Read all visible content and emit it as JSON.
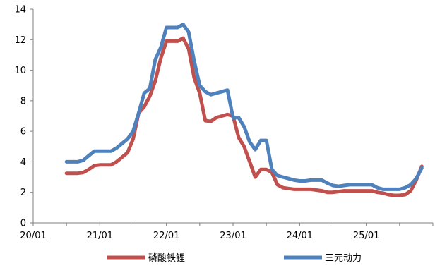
{
  "chart_data": {
    "type": "line",
    "title": "",
    "xlabel": "",
    "ylabel": "",
    "ylim": [
      0,
      14
    ],
    "yticks": [
      0,
      2,
      4,
      6,
      8,
      10,
      12,
      14
    ],
    "xlim": [
      "2020-01",
      "2026-01"
    ],
    "xticks": [
      {
        "x": "2020-01",
        "label": "20/01"
      },
      {
        "x": "2021-01",
        "label": "21/01"
      },
      {
        "x": "2022-01",
        "label": "22/01"
      },
      {
        "x": "2023-01",
        "label": "23/01"
      },
      {
        "x": "2024-01",
        "label": "24/01"
      },
      {
        "x": "2025-01",
        "label": "25/01"
      }
    ],
    "grid": false,
    "legend": "bottom",
    "series": [
      {
        "name": "磷酸铁锂",
        "color": "#C0504D",
        "points": [
          [
            "2020-07",
            3.25
          ],
          [
            "2020-08",
            3.25
          ],
          [
            "2020-09",
            3.25
          ],
          [
            "2020-10",
            3.3
          ],
          [
            "2020-11",
            3.5
          ],
          [
            "2020-12",
            3.75
          ],
          [
            "2021-01",
            3.8
          ],
          [
            "2021-02",
            3.8
          ],
          [
            "2021-03",
            3.8
          ],
          [
            "2021-04",
            4.0
          ],
          [
            "2021-05",
            4.3
          ],
          [
            "2021-06",
            4.6
          ],
          [
            "2021-07",
            5.5
          ],
          [
            "2021-08",
            7.2
          ],
          [
            "2021-09",
            7.6
          ],
          [
            "2021-10",
            8.3
          ],
          [
            "2021-11",
            9.3
          ],
          [
            "2021-12",
            10.8
          ],
          [
            "2022-01",
            11.9
          ],
          [
            "2022-02",
            11.9
          ],
          [
            "2022-03",
            11.9
          ],
          [
            "2022-04",
            12.1
          ],
          [
            "2022-05",
            11.4
          ],
          [
            "2022-06",
            9.5
          ],
          [
            "2022-07",
            8.5
          ],
          [
            "2022-08",
            6.7
          ],
          [
            "2022-09",
            6.65
          ],
          [
            "2022-10",
            6.9
          ],
          [
            "2022-11",
            7.0
          ],
          [
            "2022-12",
            7.1
          ],
          [
            "2023-01",
            7.0
          ],
          [
            "2023-02",
            5.6
          ],
          [
            "2023-03",
            5.0
          ],
          [
            "2023-04",
            4.0
          ],
          [
            "2023-05",
            3.0
          ],
          [
            "2023-06",
            3.5
          ],
          [
            "2023-07",
            3.5
          ],
          [
            "2023-08",
            3.3
          ],
          [
            "2023-09",
            2.5
          ],
          [
            "2023-10",
            2.3
          ],
          [
            "2023-11",
            2.25
          ],
          [
            "2023-12",
            2.2
          ],
          [
            "2024-01",
            2.2
          ],
          [
            "2024-02",
            2.2
          ],
          [
            "2024-03",
            2.2
          ],
          [
            "2024-04",
            2.15
          ],
          [
            "2024-05",
            2.1
          ],
          [
            "2024-06",
            2.0
          ],
          [
            "2024-07",
            2.0
          ],
          [
            "2024-08",
            2.05
          ],
          [
            "2024-09",
            2.1
          ],
          [
            "2024-10",
            2.1
          ],
          [
            "2024-11",
            2.1
          ],
          [
            "2024-12",
            2.1
          ],
          [
            "2025-01",
            2.1
          ],
          [
            "2025-02",
            2.1
          ],
          [
            "2025-03",
            2.0
          ],
          [
            "2025-04",
            1.95
          ],
          [
            "2025-05",
            1.85
          ],
          [
            "2025-06",
            1.8
          ],
          [
            "2025-07",
            1.8
          ],
          [
            "2025-08",
            1.85
          ],
          [
            "2025-09",
            2.1
          ],
          [
            "2025-10",
            2.8
          ],
          [
            "2025-11",
            3.7
          ]
        ]
      },
      {
        "name": "三元动力",
        "color": "#4F81BD",
        "points": [
          [
            "2020-07",
            4.0
          ],
          [
            "2020-08",
            4.0
          ],
          [
            "2020-09",
            4.0
          ],
          [
            "2020-10",
            4.1
          ],
          [
            "2020-11",
            4.4
          ],
          [
            "2020-12",
            4.7
          ],
          [
            "2021-01",
            4.7
          ],
          [
            "2021-02",
            4.7
          ],
          [
            "2021-03",
            4.7
          ],
          [
            "2021-04",
            4.9
          ],
          [
            "2021-05",
            5.2
          ],
          [
            "2021-06",
            5.5
          ],
          [
            "2021-07",
            6.0
          ],
          [
            "2021-08",
            7.2
          ],
          [
            "2021-09",
            8.5
          ],
          [
            "2021-10",
            8.8
          ],
          [
            "2021-11",
            10.7
          ],
          [
            "2021-12",
            11.5
          ],
          [
            "2022-01",
            12.8
          ],
          [
            "2022-02",
            12.8
          ],
          [
            "2022-03",
            12.8
          ],
          [
            "2022-04",
            13.0
          ],
          [
            "2022-05",
            12.5
          ],
          [
            "2022-06",
            10.6
          ],
          [
            "2022-07",
            9.0
          ],
          [
            "2022-08",
            8.6
          ],
          [
            "2022-09",
            8.4
          ],
          [
            "2022-10",
            8.5
          ],
          [
            "2022-11",
            8.6
          ],
          [
            "2022-12",
            8.7
          ],
          [
            "2023-01",
            6.9
          ],
          [
            "2023-02",
            6.9
          ],
          [
            "2023-03",
            6.3
          ],
          [
            "2023-04",
            5.3
          ],
          [
            "2023-05",
            4.8
          ],
          [
            "2023-06",
            5.4
          ],
          [
            "2023-07",
            5.4
          ],
          [
            "2023-08",
            3.5
          ],
          [
            "2023-09",
            3.1
          ],
          [
            "2023-10",
            3.0
          ],
          [
            "2023-11",
            2.9
          ],
          [
            "2023-12",
            2.8
          ],
          [
            "2024-01",
            2.75
          ],
          [
            "2024-02",
            2.75
          ],
          [
            "2024-03",
            2.8
          ],
          [
            "2024-04",
            2.8
          ],
          [
            "2024-05",
            2.8
          ],
          [
            "2024-06",
            2.6
          ],
          [
            "2024-07",
            2.45
          ],
          [
            "2024-08",
            2.4
          ],
          [
            "2024-09",
            2.45
          ],
          [
            "2024-10",
            2.5
          ],
          [
            "2024-11",
            2.5
          ],
          [
            "2024-12",
            2.5
          ],
          [
            "2025-01",
            2.5
          ],
          [
            "2025-02",
            2.5
          ],
          [
            "2025-03",
            2.3
          ],
          [
            "2025-04",
            2.2
          ],
          [
            "2025-05",
            2.2
          ],
          [
            "2025-06",
            2.2
          ],
          [
            "2025-07",
            2.2
          ],
          [
            "2025-08",
            2.3
          ],
          [
            "2025-09",
            2.5
          ],
          [
            "2025-10",
            2.9
          ],
          [
            "2025-11",
            3.6
          ]
        ]
      }
    ]
  }
}
